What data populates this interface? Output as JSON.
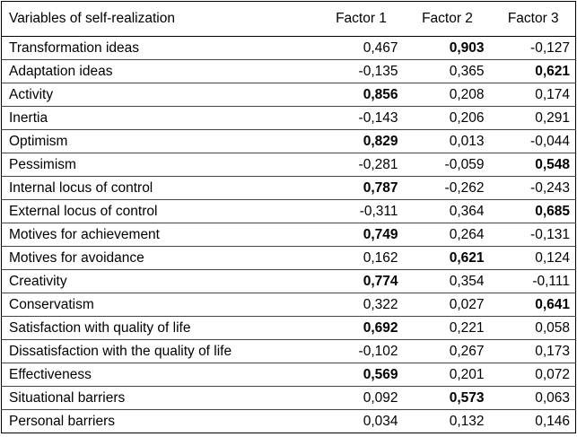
{
  "table": {
    "header": [
      "Variables of self-realization",
      "Factor 1",
      "Factor 2",
      "Factor 3"
    ],
    "rows": [
      {
        "cells": [
          "Transformation ideas",
          "0,467",
          "0,903",
          "-0,127"
        ],
        "bold": 2
      },
      {
        "cells": [
          "Adaptation ideas",
          "-0,135",
          "0,365",
          "0,621"
        ],
        "bold": 3
      },
      {
        "cells": [
          "Activity",
          "0,856",
          "0,208",
          "0,174"
        ],
        "bold": 1
      },
      {
        "cells": [
          "Inertia",
          "-0,143",
          "0,206",
          "0,291"
        ]
      },
      {
        "cells": [
          "Optimism",
          "0,829",
          "0,013",
          "-0,044"
        ],
        "bold": 1
      },
      {
        "cells": [
          "Pessimism",
          "-0,281",
          "-0,059",
          "0,548"
        ],
        "bold": 3
      },
      {
        "cells": [
          "Internal locus of control",
          "0,787",
          "-0,262",
          "-0,243"
        ],
        "bold": 1
      },
      {
        "cells": [
          "External locus of control",
          "-0,311",
          "0,364",
          "0,685"
        ],
        "bold": 3
      },
      {
        "cells": [
          "Motives for achievement",
          "0,749",
          "0,264",
          "-0,131"
        ],
        "bold": 1
      },
      {
        "cells": [
          "Motives for avoidance",
          "0,162",
          "0,621",
          "0,124"
        ],
        "bold": 2
      },
      {
        "cells": [
          "Creativity",
          "0,774",
          "0,354",
          "-0,111"
        ],
        "bold": 1
      },
      {
        "cells": [
          "Conservatism",
          "0,322",
          "0,027",
          "0,641"
        ],
        "bold": 3
      },
      {
        "cells": [
          "Satisfaction with quality of life",
          "0,692",
          "0,221",
          "0,058"
        ],
        "bold": 1
      },
      {
        "cells": [
          "Dissatisfaction with the quality of life",
          "-0,102",
          "0,267",
          "0,173"
        ]
      },
      {
        "cells": [
          "Effectiveness",
          "0,569",
          "0,201",
          "0,072"
        ],
        "bold": 1
      },
      {
        "cells": [
          "Situational barriers",
          "0,092",
          "0,573",
          "0,063"
        ],
        "bold": 2
      },
      {
        "cells": [
          "Personal barriers",
          "0,034",
          "0,132",
          "0,146"
        ]
      }
    ]
  }
}
